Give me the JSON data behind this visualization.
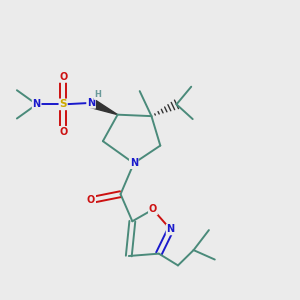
{
  "background_color": "#ebebeb",
  "atom_colors": {
    "C": "#4a8a7a",
    "N": "#1a1acc",
    "O": "#cc1111",
    "S": "#ccaa00",
    "H": "#6a9a9a"
  },
  "figsize": [
    3.0,
    3.0
  ],
  "dpi": 100
}
